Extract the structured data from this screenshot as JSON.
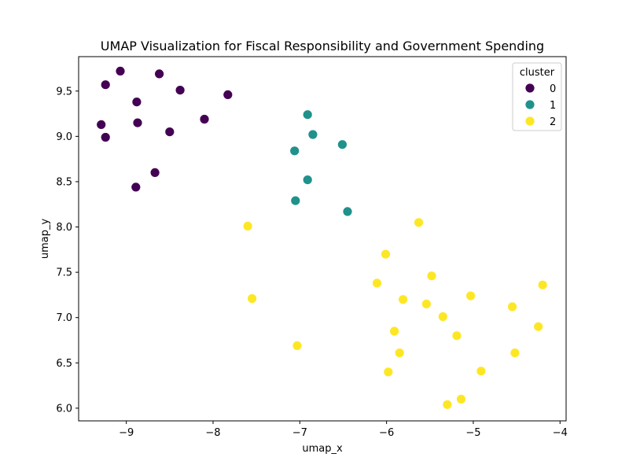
{
  "chart_data": {
    "type": "scatter",
    "title": "UMAP Visualization for Fiscal Responsibility and Government Spending",
    "xlabel": "umap_x",
    "ylabel": "umap_y",
    "xlim": [
      -9.55,
      -3.93
    ],
    "ylim": [
      5.86,
      9.88
    ],
    "xticks": [
      -9,
      -8,
      -7,
      -6,
      -5,
      -4
    ],
    "xtick_labels": [
      "−9",
      "−8",
      "−7",
      "−6",
      "−5",
      "−4"
    ],
    "yticks": [
      6.0,
      6.5,
      7.0,
      7.5,
      8.0,
      8.5,
      9.0,
      9.5
    ],
    "ytick_labels": [
      "6.0",
      "6.5",
      "7.0",
      "7.5",
      "8.0",
      "8.5",
      "9.0",
      "9.5"
    ],
    "grid": false,
    "legend": {
      "title": "cluster",
      "placement": "top-right"
    },
    "series": [
      {
        "name": "0",
        "color": "#440154",
        "points": [
          [
            -9.07,
            9.72
          ],
          [
            -8.62,
            9.69
          ],
          [
            -9.24,
            9.57
          ],
          [
            -8.38,
            9.51
          ],
          [
            -7.83,
            9.46
          ],
          [
            -8.88,
            9.38
          ],
          [
            -8.1,
            9.19
          ],
          [
            -8.87,
            9.15
          ],
          [
            -9.29,
            9.13
          ],
          [
            -8.5,
            9.05
          ],
          [
            -9.24,
            8.99
          ],
          [
            -8.67,
            8.6
          ],
          [
            -8.89,
            8.44
          ]
        ]
      },
      {
        "name": "1",
        "color": "#21918c",
        "points": [
          [
            -6.91,
            9.24
          ],
          [
            -6.85,
            9.02
          ],
          [
            -6.51,
            8.91
          ],
          [
            -7.06,
            8.84
          ],
          [
            -6.91,
            8.52
          ],
          [
            -7.05,
            8.29
          ],
          [
            -6.45,
            8.17
          ]
        ]
      },
      {
        "name": "2",
        "color": "#fde725",
        "points": [
          [
            -7.6,
            8.01
          ],
          [
            -5.63,
            8.05
          ],
          [
            -6.01,
            7.7
          ],
          [
            -5.48,
            7.46
          ],
          [
            -6.11,
            7.38
          ],
          [
            -4.2,
            7.36
          ],
          [
            -5.03,
            7.24
          ],
          [
            -5.81,
            7.2
          ],
          [
            -7.55,
            7.21
          ],
          [
            -5.54,
            7.15
          ],
          [
            -4.55,
            7.12
          ],
          [
            -5.35,
            7.01
          ],
          [
            -4.25,
            6.9
          ],
          [
            -5.91,
            6.85
          ],
          [
            -5.19,
            6.8
          ],
          [
            -7.03,
            6.69
          ],
          [
            -5.85,
            6.61
          ],
          [
            -4.52,
            6.61
          ],
          [
            -4.91,
            6.41
          ],
          [
            -5.98,
            6.4
          ],
          [
            -5.14,
            6.1
          ],
          [
            -5.3,
            6.04
          ]
        ]
      }
    ]
  }
}
